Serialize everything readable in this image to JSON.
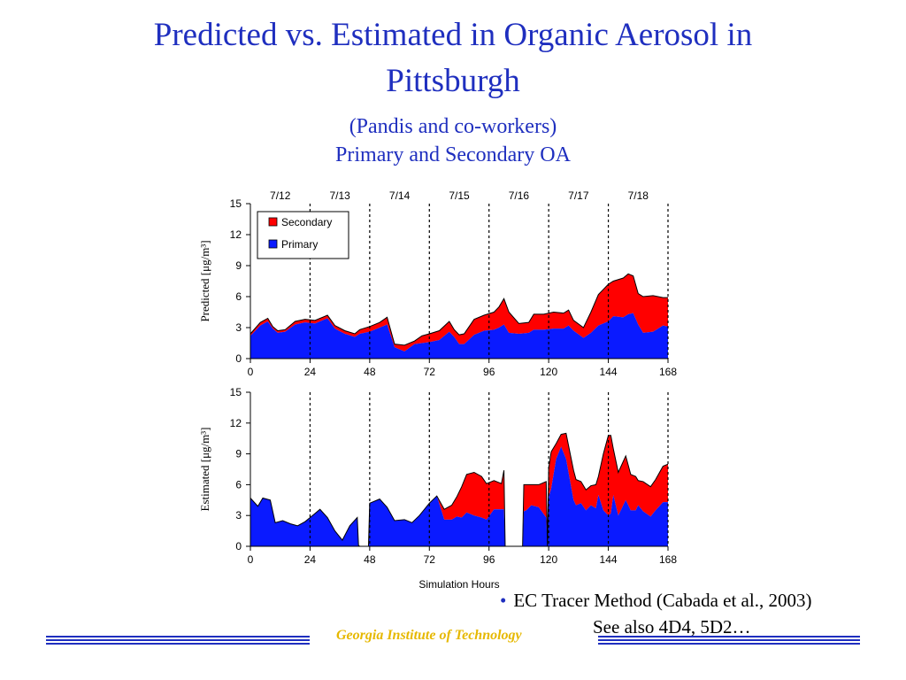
{
  "slide": {
    "title_line1": "Predicted vs. Estimated in Organic Aerosol in",
    "title_line2": "Pittsburgh",
    "subtitle_line1": "(Pandis and co-workers)",
    "subtitle_line2": "Primary and Secondary OA",
    "bullet_line1": "EC Tracer Method (Cabada et al., 2003)",
    "bullet_line2": "See also 4D4, 5D2…",
    "footer": "Georgia Institute of Technology",
    "colors": {
      "title": "#1f2fbf",
      "footer": "#e6b800",
      "primary": "#0a1aff",
      "secondary": "#ff0000"
    }
  },
  "chart_data": [
    {
      "type": "area",
      "stacked": true,
      "ylabel": "Predicted [μg/m³]",
      "xlim": [
        0,
        168
      ],
      "ylim": [
        0,
        15
      ],
      "xticks": [
        0,
        24,
        48,
        72,
        96,
        120,
        144,
        168
      ],
      "yticks": [
        0,
        3,
        6,
        9,
        12,
        15
      ],
      "top_labels": [
        "7/12",
        "7/13",
        "7/14",
        "7/15",
        "7/16",
        "7/17",
        "7/18"
      ],
      "top_label_x": [
        12,
        36,
        60,
        84,
        108,
        132,
        156
      ],
      "day_lines": [
        24,
        48,
        72,
        96,
        120,
        144,
        168
      ],
      "legend": [
        "Secondary",
        "Primary"
      ],
      "legend_position": "top-left",
      "x": [
        0,
        4,
        7,
        9,
        11,
        14,
        18,
        22,
        26,
        30,
        31,
        34,
        38,
        42,
        44,
        48,
        52,
        55,
        58,
        62,
        66,
        69,
        72,
        76,
        80,
        82,
        84,
        86,
        90,
        94,
        98,
        100,
        102,
        104,
        108,
        112,
        114,
        118,
        122,
        126,
        128,
        130,
        134,
        137,
        140,
        144,
        146,
        150,
        152,
        154,
        156,
        158,
        162,
        166,
        168
      ],
      "series": [
        {
          "name": "Primary",
          "values": [
            2.2,
            3.2,
            3.6,
            2.9,
            2.5,
            2.6,
            3.3,
            3.5,
            3.4,
            3.8,
            3.9,
            2.9,
            2.4,
            2.1,
            2.4,
            2.6,
            3.0,
            3.3,
            1.1,
            0.7,
            1.4,
            1.5,
            1.6,
            1.8,
            2.6,
            2.1,
            1.4,
            1.4,
            2.3,
            2.7,
            2.8,
            3.0,
            3.3,
            2.5,
            2.4,
            2.5,
            2.8,
            2.8,
            2.9,
            2.9,
            3.2,
            2.7,
            2.0,
            2.5,
            3.2,
            3.6,
            4.1,
            4.0,
            4.3,
            4.4,
            3.3,
            2.5,
            2.6,
            3.2,
            3.1
          ]
        },
        {
          "name": "Secondary",
          "values": [
            0.2,
            0.3,
            0.3,
            0.2,
            0.2,
            0.2,
            0.3,
            0.3,
            0.3,
            0.3,
            0.3,
            0.3,
            0.3,
            0.3,
            0.4,
            0.5,
            0.5,
            0.7,
            0.3,
            0.6,
            0.3,
            0.7,
            0.8,
            0.9,
            1.0,
            0.7,
            0.9,
            1.0,
            1.5,
            1.5,
            1.7,
            2.0,
            2.5,
            2.0,
            1.0,
            1.0,
            1.5,
            1.5,
            1.6,
            1.5,
            1.5,
            1.0,
            1.0,
            2.0,
            3.0,
            3.6,
            3.4,
            3.8,
            3.9,
            3.6,
            3.0,
            3.5,
            3.5,
            2.7,
            2.8
          ]
        }
      ]
    },
    {
      "type": "area",
      "stacked": true,
      "ylabel": "Estimated [μg/m³]",
      "xlabel": "Simulation Hours",
      "xlim": [
        0,
        168
      ],
      "ylim": [
        0,
        15
      ],
      "xticks": [
        0,
        24,
        48,
        72,
        96,
        120,
        144,
        168
      ],
      "yticks": [
        0,
        3,
        6,
        9,
        12,
        15
      ],
      "day_lines": [
        24,
        48,
        72,
        96,
        120,
        144,
        168
      ],
      "x": [
        0,
        3,
        5,
        8,
        10,
        13,
        16,
        19,
        22,
        25,
        28,
        31,
        34,
        37,
        40,
        43,
        43.5,
        44,
        45,
        46,
        47,
        47.5,
        48,
        52,
        55,
        58,
        62,
        65,
        68,
        72,
        75,
        78,
        81,
        83,
        85,
        87,
        90,
        93,
        95,
        98,
        101,
        102,
        102.5,
        103,
        109.5,
        110,
        111,
        113,
        116,
        119,
        119.5,
        120,
        121,
        123,
        125,
        127,
        130,
        131,
        133,
        135,
        137,
        139,
        140,
        142,
        144,
        145,
        146,
        148,
        151,
        153,
        155,
        156,
        158,
        161,
        163,
        166,
        168
      ],
      "series": [
        {
          "name": "Primary",
          "values": [
            4.7,
            3.9,
            4.7,
            4.5,
            2.3,
            2.5,
            2.2,
            2.0,
            2.4,
            3.0,
            3.6,
            2.8,
            1.5,
            0.6,
            2.0,
            2.8,
            0.1,
            0.0,
            0.0,
            0.0,
            0.0,
            0.0,
            4.2,
            4.6,
            3.8,
            2.5,
            2.6,
            2.3,
            3.0,
            4.2,
            4.9,
            2.6,
            2.6,
            2.9,
            2.8,
            3.3,
            3.0,
            2.8,
            2.6,
            3.6,
            3.6,
            3.6,
            0.0,
            0.0,
            0.0,
            3.4,
            3.5,
            4.0,
            3.8,
            2.8,
            0.0,
            4.8,
            5.6,
            8.5,
            9.7,
            8.5,
            4.5,
            4.0,
            4.2,
            3.5,
            4.0,
            3.7,
            5.0,
            3.5,
            3.0,
            3.2,
            5.0,
            3.0,
            4.5,
            3.5,
            3.5,
            4.0,
            3.4,
            2.9,
            3.5,
            4.3,
            4.3
          ]
        },
        {
          "name": "Secondary",
          "values": [
            0.0,
            0.0,
            0.0,
            0.0,
            0.0,
            0.0,
            0.0,
            0.0,
            0.0,
            0.0,
            0.0,
            0.0,
            0.0,
            0.0,
            0.0,
            0.0,
            0.0,
            0.0,
            0.0,
            0.0,
            0.0,
            0.0,
            0.0,
            0.0,
            0.0,
            0.0,
            0.0,
            0.0,
            0.0,
            0.0,
            0.0,
            1.0,
            1.4,
            1.9,
            3.0,
            3.7,
            4.2,
            4.0,
            3.5,
            2.8,
            2.5,
            3.8,
            0.0,
            0.0,
            0.0,
            2.6,
            2.5,
            2.0,
            2.2,
            3.5,
            0.0,
            2.8,
            3.6,
            1.5,
            1.2,
            2.5,
            2.9,
            2.5,
            2.1,
            2.0,
            1.9,
            2.3,
            1.8,
            5.5,
            7.8,
            7.6,
            4.5,
            4.2,
            4.3,
            3.5,
            3.3,
            2.4,
            2.9,
            2.9,
            3.0,
            3.5,
            3.7
          ]
        }
      ]
    }
  ]
}
